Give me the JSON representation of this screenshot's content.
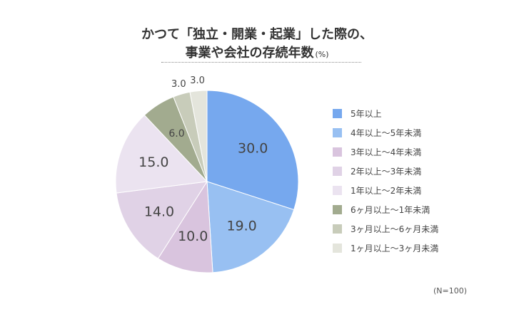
{
  "chart_data": {
    "type": "pie",
    "title_lines": [
      "かつて「独立・開業・起業」した際の、",
      "事業や会社の存続年数"
    ],
    "unit": "(%)",
    "note": "(N=100)",
    "categories": [
      "5年以上",
      "4年以上～5年未満",
      "3年以上～4年未満",
      "2年以上～3年未満",
      "1年以上～2年未満",
      "6ヶ月以上～1年未満",
      "3ヶ月以上～6ヶ月未満",
      "1ヶ月以上～3ヶ月未満"
    ],
    "values": [
      30.0,
      19.0,
      10.0,
      14.0,
      15.0,
      6.0,
      3.0,
      3.0
    ],
    "data_labels": [
      "30.0",
      "19.0",
      "10.0",
      "14.0",
      "15.0",
      "6.0",
      "3.0",
      "3.0"
    ],
    "colors": [
      "#76a8ee",
      "#98c0f2",
      "#d9c4de",
      "#e0d2e6",
      "#ebe3f0",
      "#a2ab8f",
      "#c8ccba",
      "#e4e5dc"
    ],
    "start_angle": "12 o'clock, clockwise",
    "legend_position": "right"
  }
}
